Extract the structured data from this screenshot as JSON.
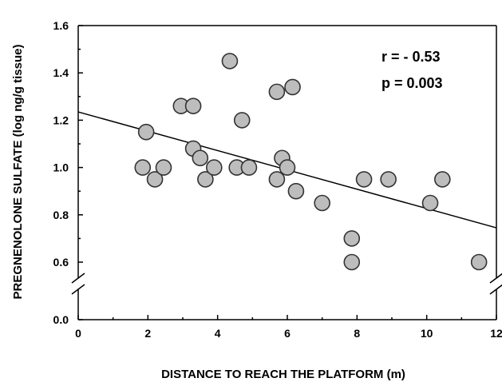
{
  "chart_data": {
    "type": "scatter",
    "xlabel": "DISTANCE TO REACH THE PLATFORM (m)",
    "ylabel": "PREGNENOLONE SULFATE (log ng/g tissue)",
    "xlim": [
      0,
      12
    ],
    "ylim_upper": [
      0.5,
      1.6
    ],
    "ylim_lower": [
      0.0,
      0.1
    ],
    "axis_break": true,
    "grid": false,
    "x_ticks": [
      "0",
      "2",
      "4",
      "6",
      "8",
      "10",
      "12"
    ],
    "y_ticks": [
      "0.6",
      "0.8",
      "1.0",
      "1.2",
      "1.4",
      "1.6"
    ],
    "y_ticks_lower": [
      "0.0"
    ],
    "annotations": [
      "r = - 0.53",
      "p = 0.003"
    ],
    "x": [
      1.85,
      1.95,
      2.2,
      2.45,
      2.95,
      3.3,
      3.3,
      3.5,
      3.65,
      3.9,
      4.35,
      4.55,
      4.7,
      4.9,
      5.7,
      5.7,
      5.85,
      6.0,
      6.15,
      6.25,
      7.0,
      7.85,
      7.85,
      8.2,
      8.9,
      10.1,
      10.45,
      11.5
    ],
    "y": [
      1.0,
      1.15,
      0.95,
      1.0,
      1.26,
      1.26,
      1.08,
      1.04,
      0.95,
      1.0,
      1.45,
      1.0,
      1.2,
      1.0,
      1.32,
      0.95,
      1.04,
      1.0,
      1.34,
      0.9,
      0.85,
      0.7,
      0.6,
      0.95,
      0.95,
      0.85,
      0.95,
      0.6
    ],
    "regression_line": {
      "x": [
        0,
        12
      ],
      "y": [
        1.235,
        0.745
      ]
    },
    "marker_color": "#bdbdbd",
    "marker_edge_color": "#333333"
  }
}
